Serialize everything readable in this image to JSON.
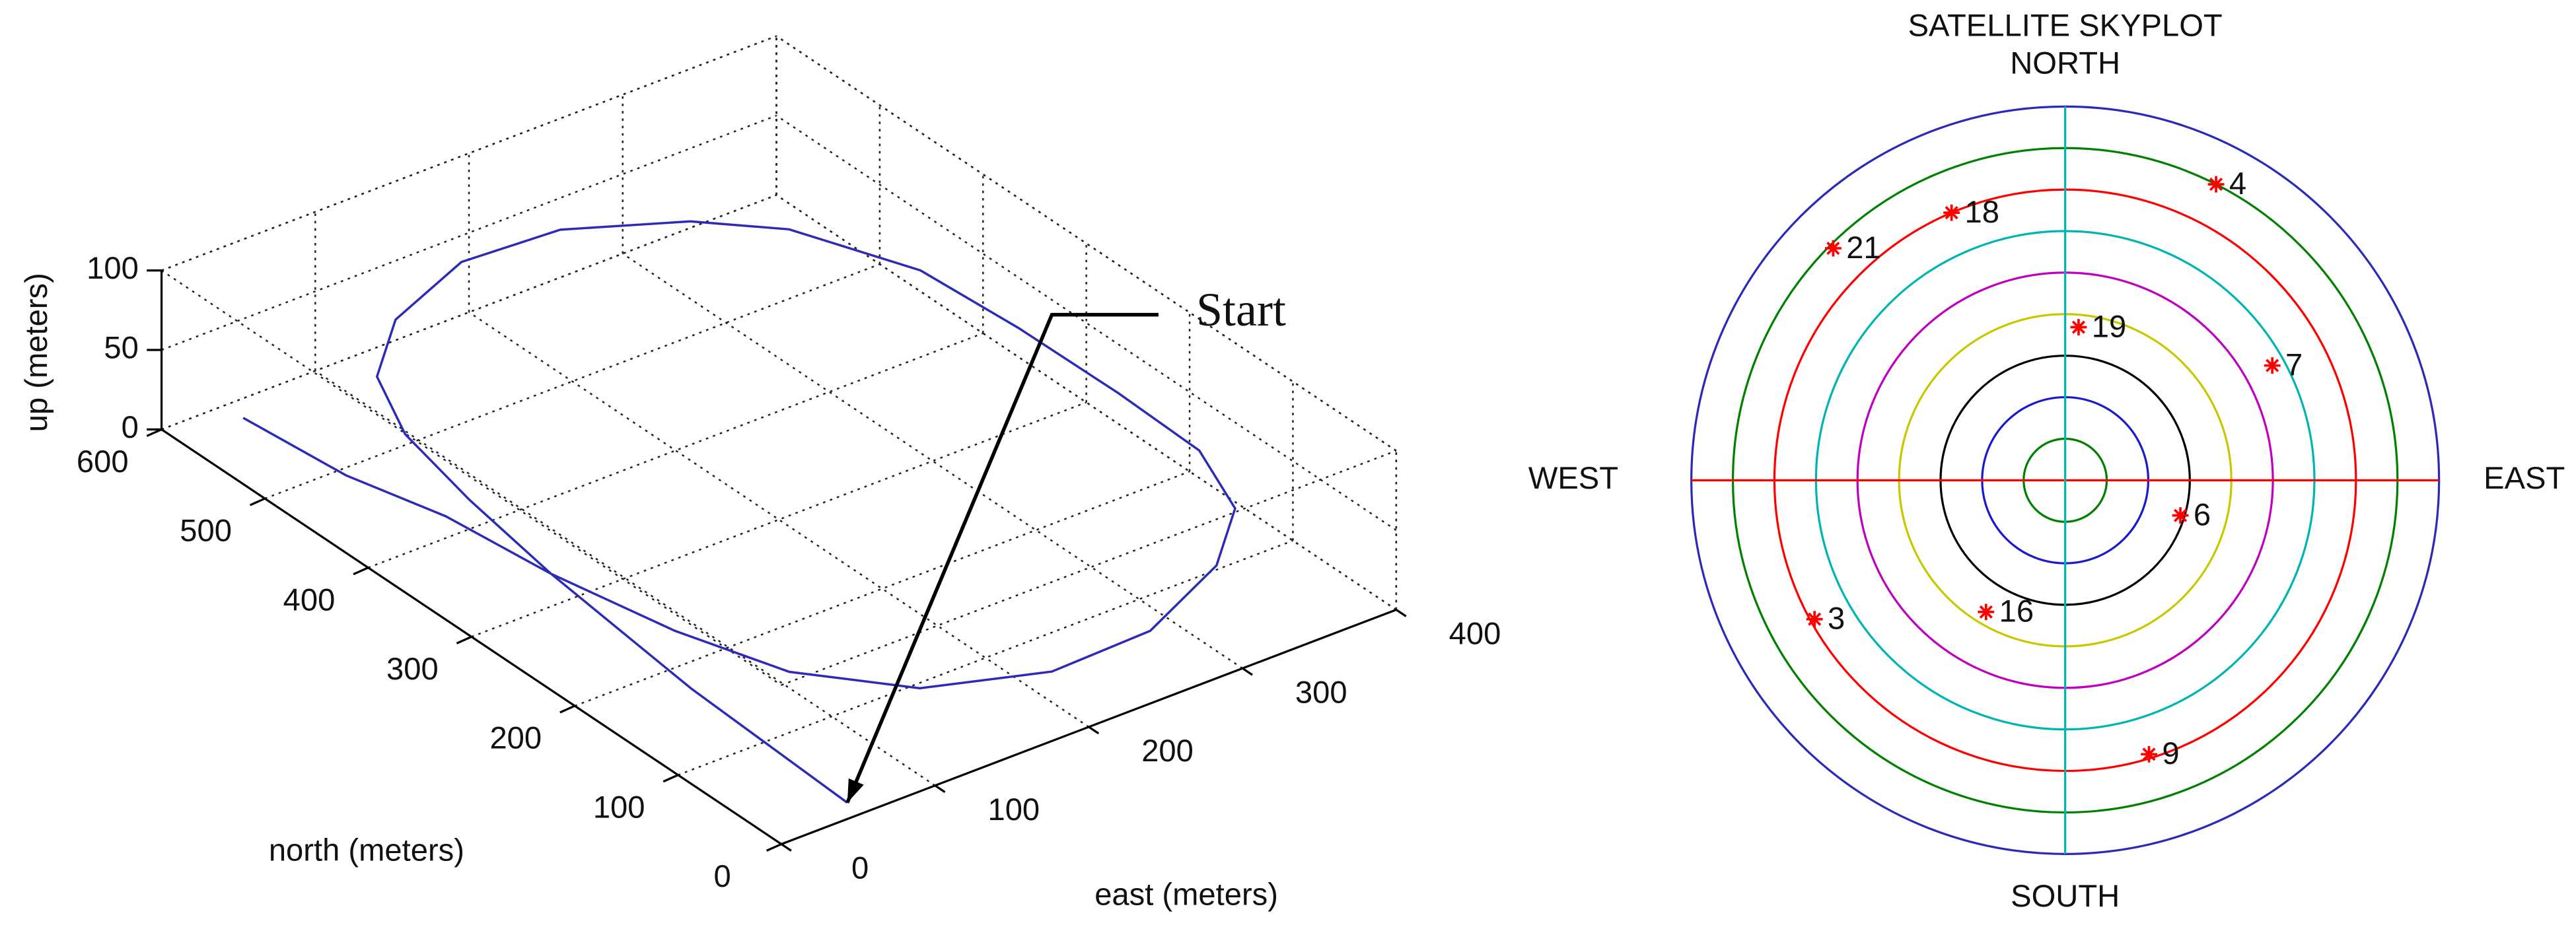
{
  "chart_data": [
    {
      "type": "line3d",
      "xlabel": "east (meters)",
      "ylabel": "north (meters)",
      "zlabel": "up (meters)",
      "xlim": [
        0,
        400
      ],
      "xticks": [
        0,
        100,
        200,
        300,
        400
      ],
      "ylim": [
        0,
        600
      ],
      "yticks": [
        0,
        100,
        200,
        300,
        400,
        500,
        600
      ],
      "zlim": [
        0,
        100
      ],
      "zticks": [
        0,
        50,
        100
      ],
      "grid": true,
      "annotation": "Start",
      "series": [
        {
          "color": "#2b2bb8",
          "x": [
            53,
            59,
            72,
            84,
            98,
            122,
            165,
            228,
            289,
            348,
            384,
            413,
            418,
            419,
            417,
            396,
            353,
            285,
            219,
            154,
            110,
            88,
            72,
            64,
            48,
            41
          ],
          "y": [
            15,
            175,
            330,
            427,
            510,
            573,
            619,
            649,
            644,
            606,
            564,
            480,
            392,
            297,
            216,
            150,
            104,
            67,
            64,
            95,
            156,
            234,
            330,
            420,
            493,
            582
          ],
          "z": [
            0,
            0,
            0,
            0,
            0,
            0,
            0,
            0,
            0,
            0,
            0,
            0,
            0,
            0,
            0,
            0,
            0,
            0,
            0,
            0,
            0,
            0,
            0,
            0,
            0,
            0
          ]
        }
      ]
    },
    {
      "type": "skyplot",
      "title": "SATELLITE SKYPLOT",
      "directions": {
        "north": "NORTH",
        "south": "SOUTH",
        "east": "EAST",
        "west": "WEST"
      },
      "rlim": [
        90,
        0
      ],
      "rticks": [
        80,
        70,
        60,
        50,
        40,
        30,
        20,
        10,
        0
      ],
      "ring_colors": [
        "#008000",
        "#1a1acc",
        "#000000",
        "#c8c800",
        "#c000c0",
        "#00b4b4",
        "#ff0000",
        "#008000",
        "#2a2ab8"
      ],
      "marker_color": "#ff0000",
      "labels": [
        "4",
        "18",
        "21",
        "19",
        "7",
        "6",
        "3",
        "16",
        "9"
      ],
      "azimuth": [
        27,
        337,
        315,
        5,
        61,
        107,
        241,
        211,
        163
      ],
      "elevation": [
        10,
        20,
        11,
        53,
        33,
        61,
        21,
        53,
        21
      ]
    }
  ]
}
